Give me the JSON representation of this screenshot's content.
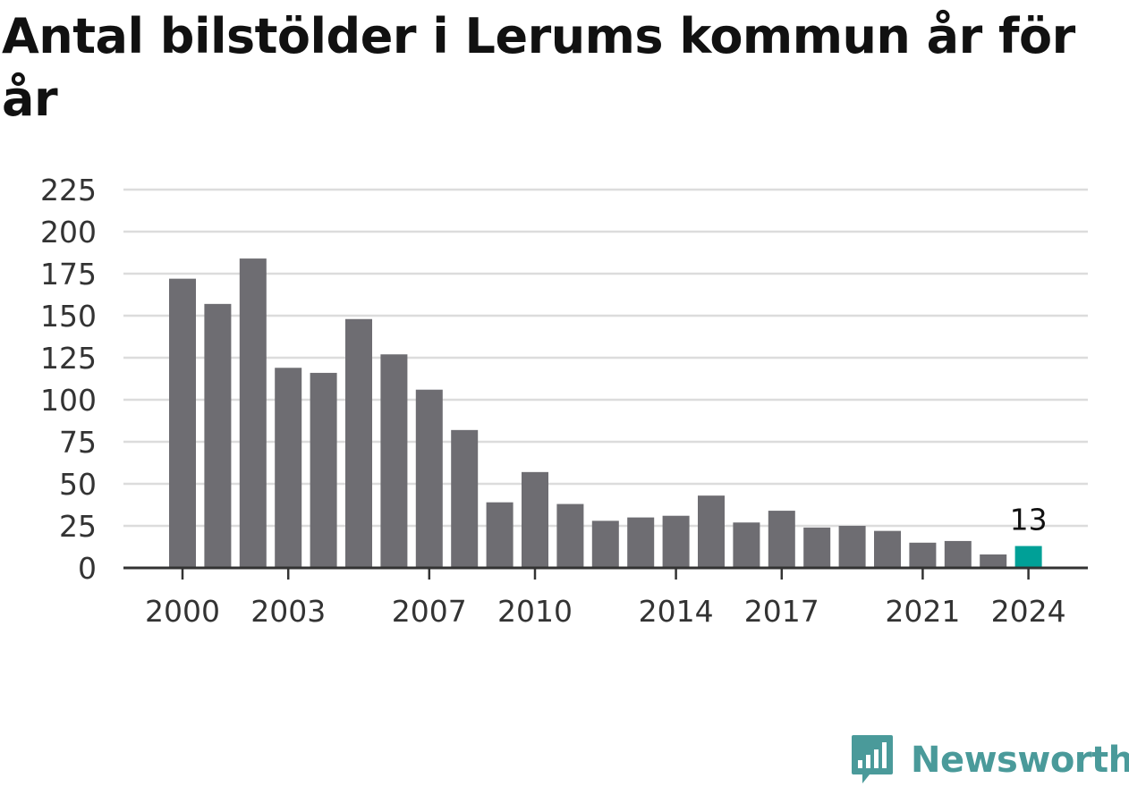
{
  "title": "Antal bilstölder i Lerums kommun år för år",
  "brand": {
    "name": "Newsworthy",
    "icon": "newsworthy-chart-bubble-icon",
    "color": "#4a9a9a"
  },
  "colors": {
    "bar": "#6e6d72",
    "highlight": "#00a097",
    "grid": "#dcdcdc",
    "axis": "#333333"
  },
  "chart_data": {
    "type": "bar",
    "title": "Antal bilstölder i Lerums kommun år för år",
    "xlabel": "",
    "ylabel": "",
    "categories": [
      "2000",
      "2001",
      "2002",
      "2003",
      "2004",
      "2005",
      "2006",
      "2007",
      "2008",
      "2009",
      "2010",
      "2011",
      "2012",
      "2013",
      "2014",
      "2015",
      "2016",
      "2017",
      "2018",
      "2019",
      "2020",
      "2021",
      "2022",
      "2023",
      "2024"
    ],
    "values": [
      172,
      157,
      184,
      119,
      116,
      148,
      127,
      106,
      82,
      39,
      57,
      38,
      28,
      30,
      31,
      43,
      27,
      34,
      24,
      25,
      22,
      15,
      16,
      8,
      13
    ],
    "x_tick_labels": [
      "2000",
      "2003",
      "2007",
      "2010",
      "2014",
      "2017",
      "2021",
      "2024"
    ],
    "y_ticks": [
      0,
      25,
      50,
      75,
      100,
      125,
      150,
      175,
      200,
      225
    ],
    "ylim": [
      0,
      225
    ],
    "grid": true,
    "legend": "none",
    "highlight_index": 24,
    "data_labels": [
      {
        "index": 24,
        "text": "13"
      }
    ]
  }
}
